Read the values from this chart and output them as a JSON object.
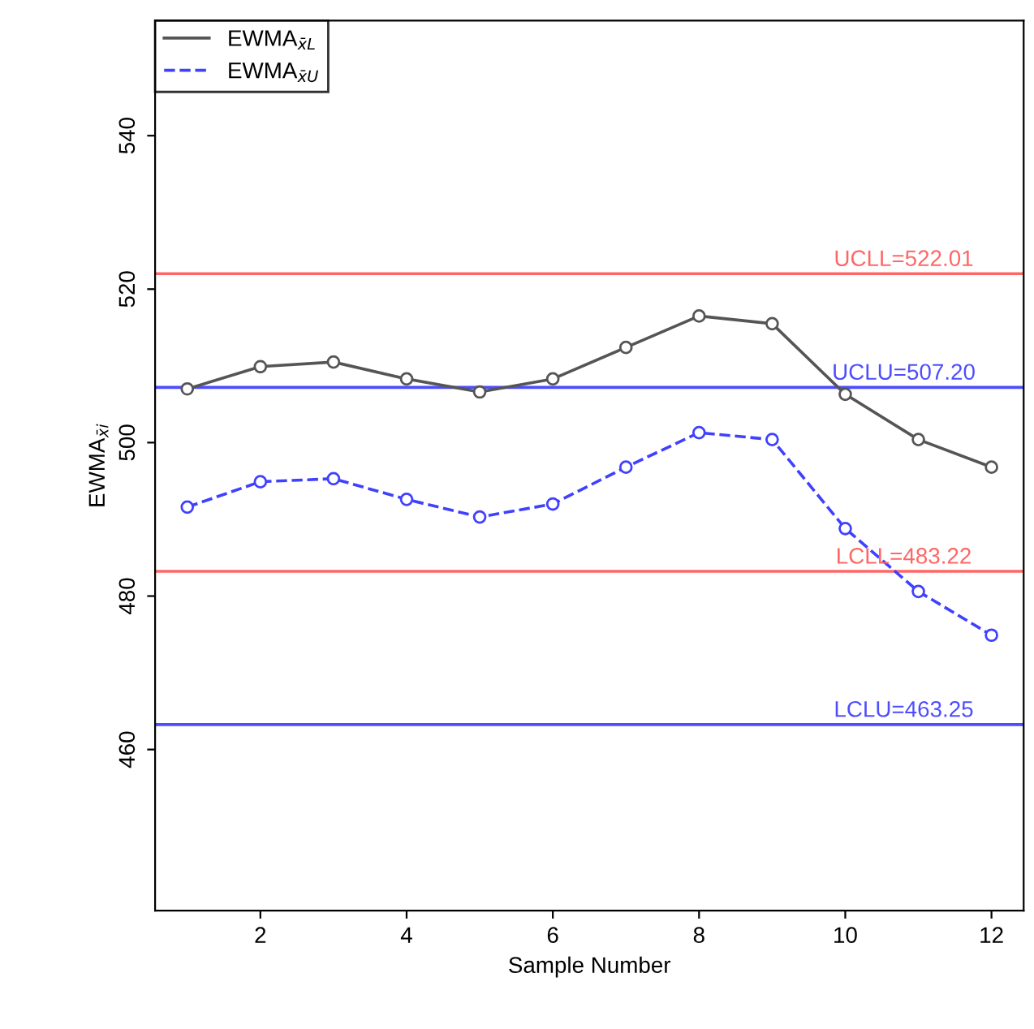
{
  "chart_data": {
    "type": "line",
    "xlabel": "Sample Number",
    "ylabel": "EWMA$_{x̄i}$",
    "x": [
      1,
      2,
      3,
      4,
      5,
      6,
      7,
      8,
      9,
      10,
      11,
      12
    ],
    "series": [
      {
        "name": "EWMA$_{x̄L}$",
        "color": "#555555",
        "line_style": "solid",
        "values": [
          507.0,
          509.9,
          510.5,
          508.3,
          506.6,
          508.3,
          512.4,
          516.5,
          515.5,
          506.3,
          500.4,
          496.8
        ]
      },
      {
        "name": "EWMA$_{x̄U}$",
        "color": "#4040ff",
        "line_style": "dashed",
        "values": [
          491.6,
          494.9,
          495.3,
          492.6,
          490.3,
          492.0,
          496.8,
          501.3,
          500.4,
          488.8,
          480.6,
          474.9
        ]
      }
    ],
    "marker": "circle",
    "xlim": [
      0.56,
      12.44
    ],
    "ylim": [
      439,
      555
    ],
    "xticks": [
      2,
      4,
      6,
      8,
      10,
      12
    ],
    "yticks": [
      460,
      480,
      500,
      520,
      540
    ],
    "ref_lines": [
      {
        "axis": "y",
        "value": 522.01,
        "label": "UCLL=522.01",
        "color": "#ff6666"
      },
      {
        "axis": "y",
        "value": 507.2,
        "label": "UCLU=507.20",
        "color": "#4d4dff"
      },
      {
        "axis": "y",
        "value": 483.22,
        "label": "LCLL=483.22",
        "color": "#ff6666"
      },
      {
        "axis": "y",
        "value": 463.25,
        "label": "LCLU=463.25",
        "color": "#4d4dff"
      }
    ],
    "grid": false,
    "legend": "top left"
  }
}
